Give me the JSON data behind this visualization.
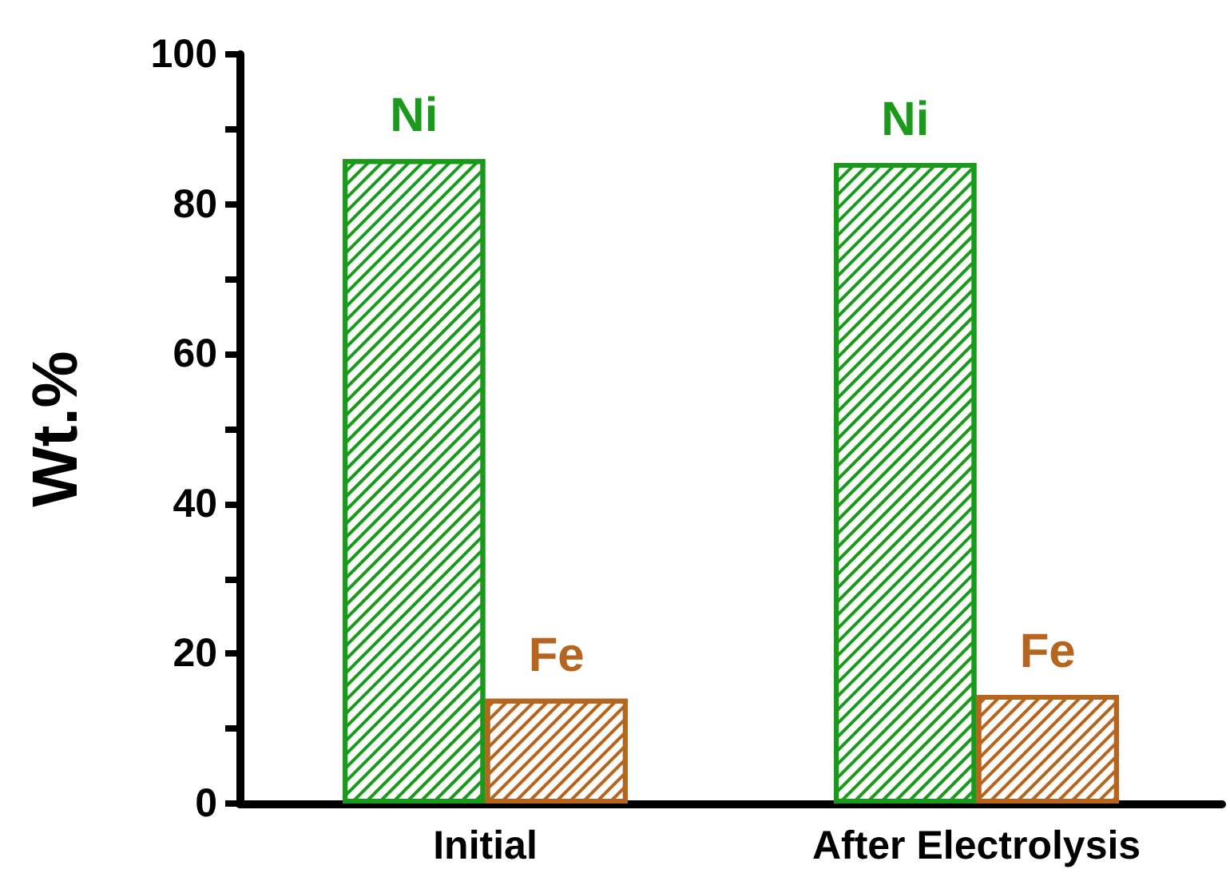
{
  "chart_data": {
    "type": "bar",
    "ylabel": "Wt.%",
    "categories": [
      "Initial",
      "After Electrolysis"
    ],
    "series": [
      {
        "name": "Ni",
        "color": "#1a9a1a",
        "values": [
          86,
          85.5
        ]
      },
      {
        "name": "Fe",
        "color": "#b5651d",
        "values": [
          14,
          14.5
        ]
      }
    ],
    "ylim": [
      0,
      100
    ],
    "yticks": [
      0,
      {
        "value": 10,
        "label": null
      },
      20,
      {
        "value": 30,
        "label": null
      },
      40,
      {
        "value": 50,
        "label": null
      },
      60,
      {
        "value": 70,
        "label": null
      },
      80,
      {
        "value": 90,
        "label": null
      },
      100
    ],
    "grid": false,
    "legend": false
  }
}
